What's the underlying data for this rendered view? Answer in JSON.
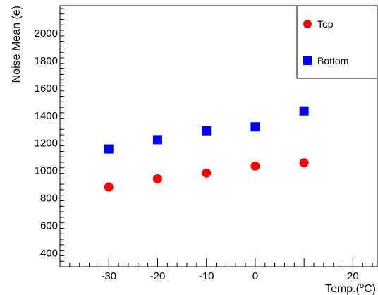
{
  "chart_data": {
    "type": "scatter",
    "xlabel": "Temp.(",
    "xlabel_sup": "o",
    "xlabel_suffix": "C)",
    "ylabel": "Noise Mean (e)",
    "xlim": [
      -40,
      25
    ],
    "ylim": [
      300,
      2200
    ],
    "x_ticks": [
      -30,
      -20,
      -10,
      0,
      20
    ],
    "x_tick_labels": [
      "-30",
      "-20",
      "-10",
      "0",
      "20"
    ],
    "y_ticks": [
      400,
      600,
      800,
      1000,
      1200,
      1400,
      1600,
      1800,
      2000
    ],
    "y_tick_labels": [
      "400",
      "600",
      "800",
      "1000",
      "1200",
      "1400",
      "1600",
      "1800",
      "2000"
    ],
    "grid": false,
    "legend_position": "top-right",
    "series": [
      {
        "name": "Top",
        "marker": "circle",
        "color": "#ff0000",
        "x": [
          -30,
          -20,
          -10,
          0,
          10
        ],
        "y": [
          880,
          940,
          982,
          1033,
          1057
        ]
      },
      {
        "name": "Bottom",
        "marker": "square",
        "color": "#0000ff",
        "x": [
          -30,
          -20,
          -10,
          0,
          10
        ],
        "y": [
          1157,
          1225,
          1290,
          1318,
          1434
        ]
      }
    ]
  }
}
